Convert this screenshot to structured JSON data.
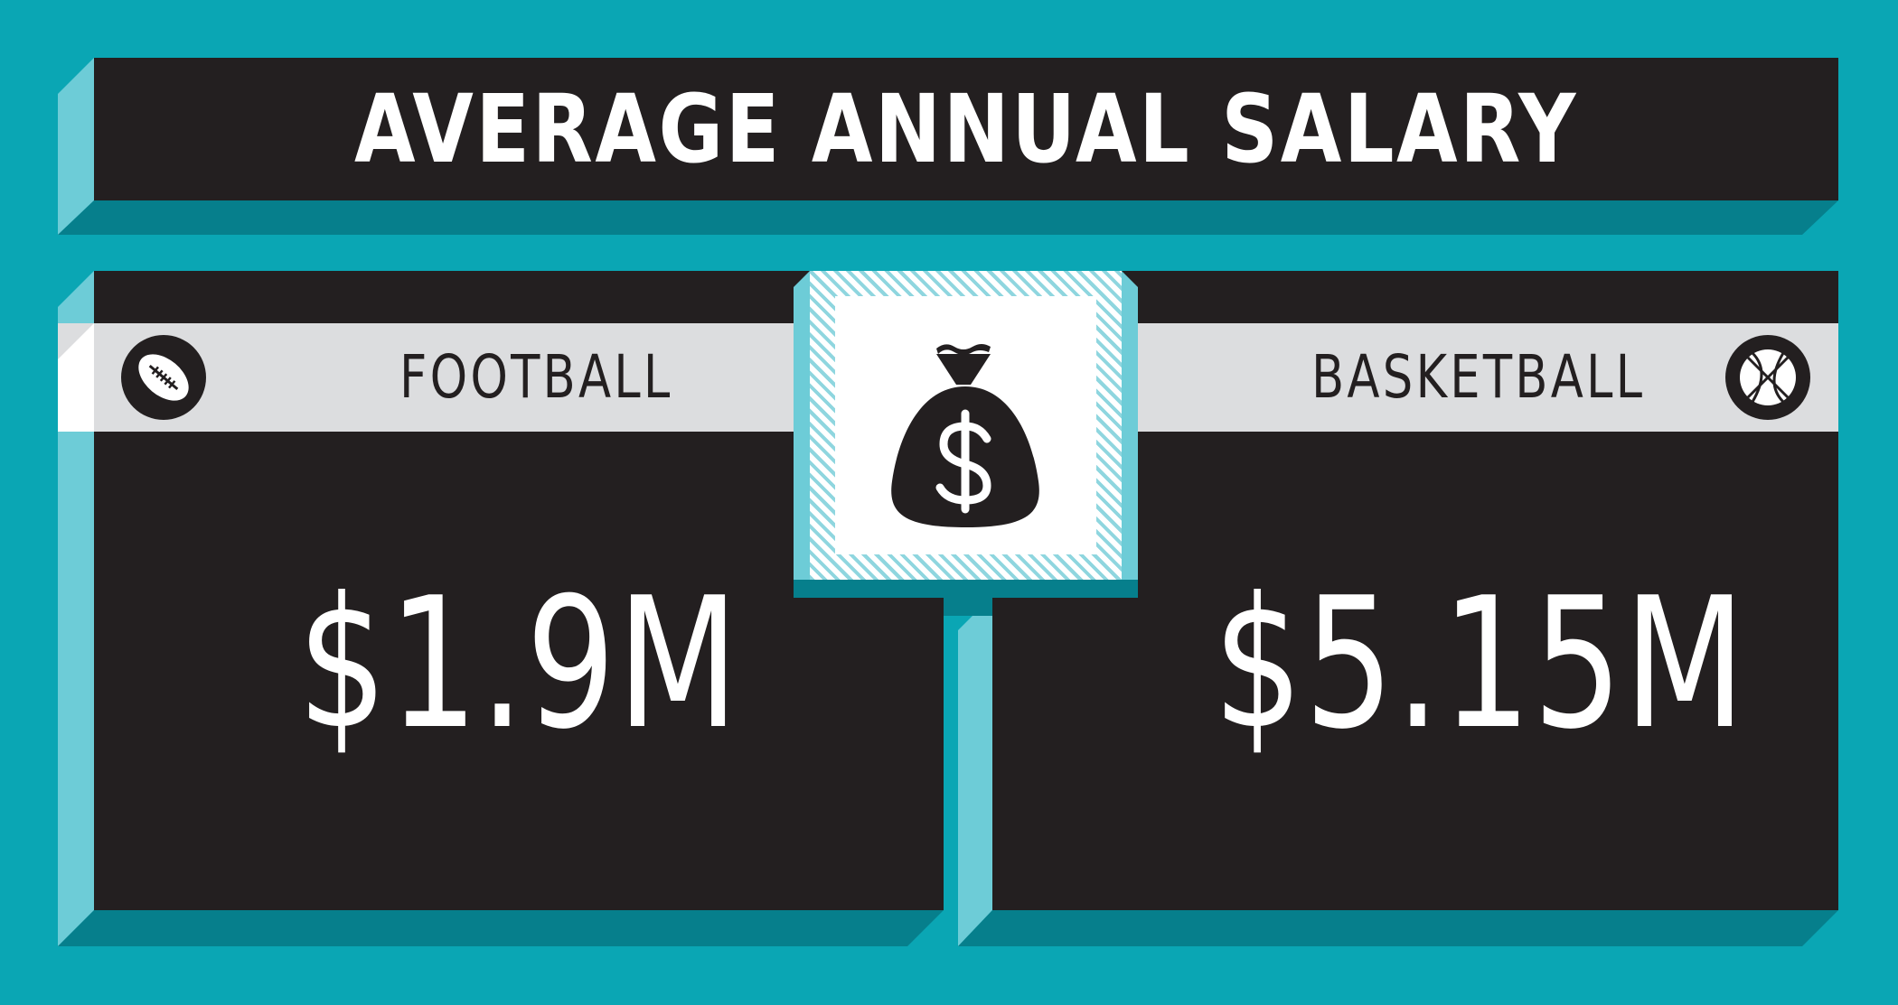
{
  "title": "AVERAGE ANNUAL SALARY",
  "football": {
    "label": "FOOTBALL",
    "value": "$1.9M",
    "icon": "football-icon"
  },
  "basketball": {
    "label": "BASKETBALL",
    "value": "$5.15M",
    "icon": "basketball-icon"
  },
  "center_icon": "money-bag-icon",
  "colors": {
    "background": "#0aa6b4",
    "panel": "#231f20",
    "band": "#dcdddf",
    "bevel_light": "#6dccd7",
    "bevel_dark": "#067f8c",
    "text_light": "#ffffff"
  }
}
